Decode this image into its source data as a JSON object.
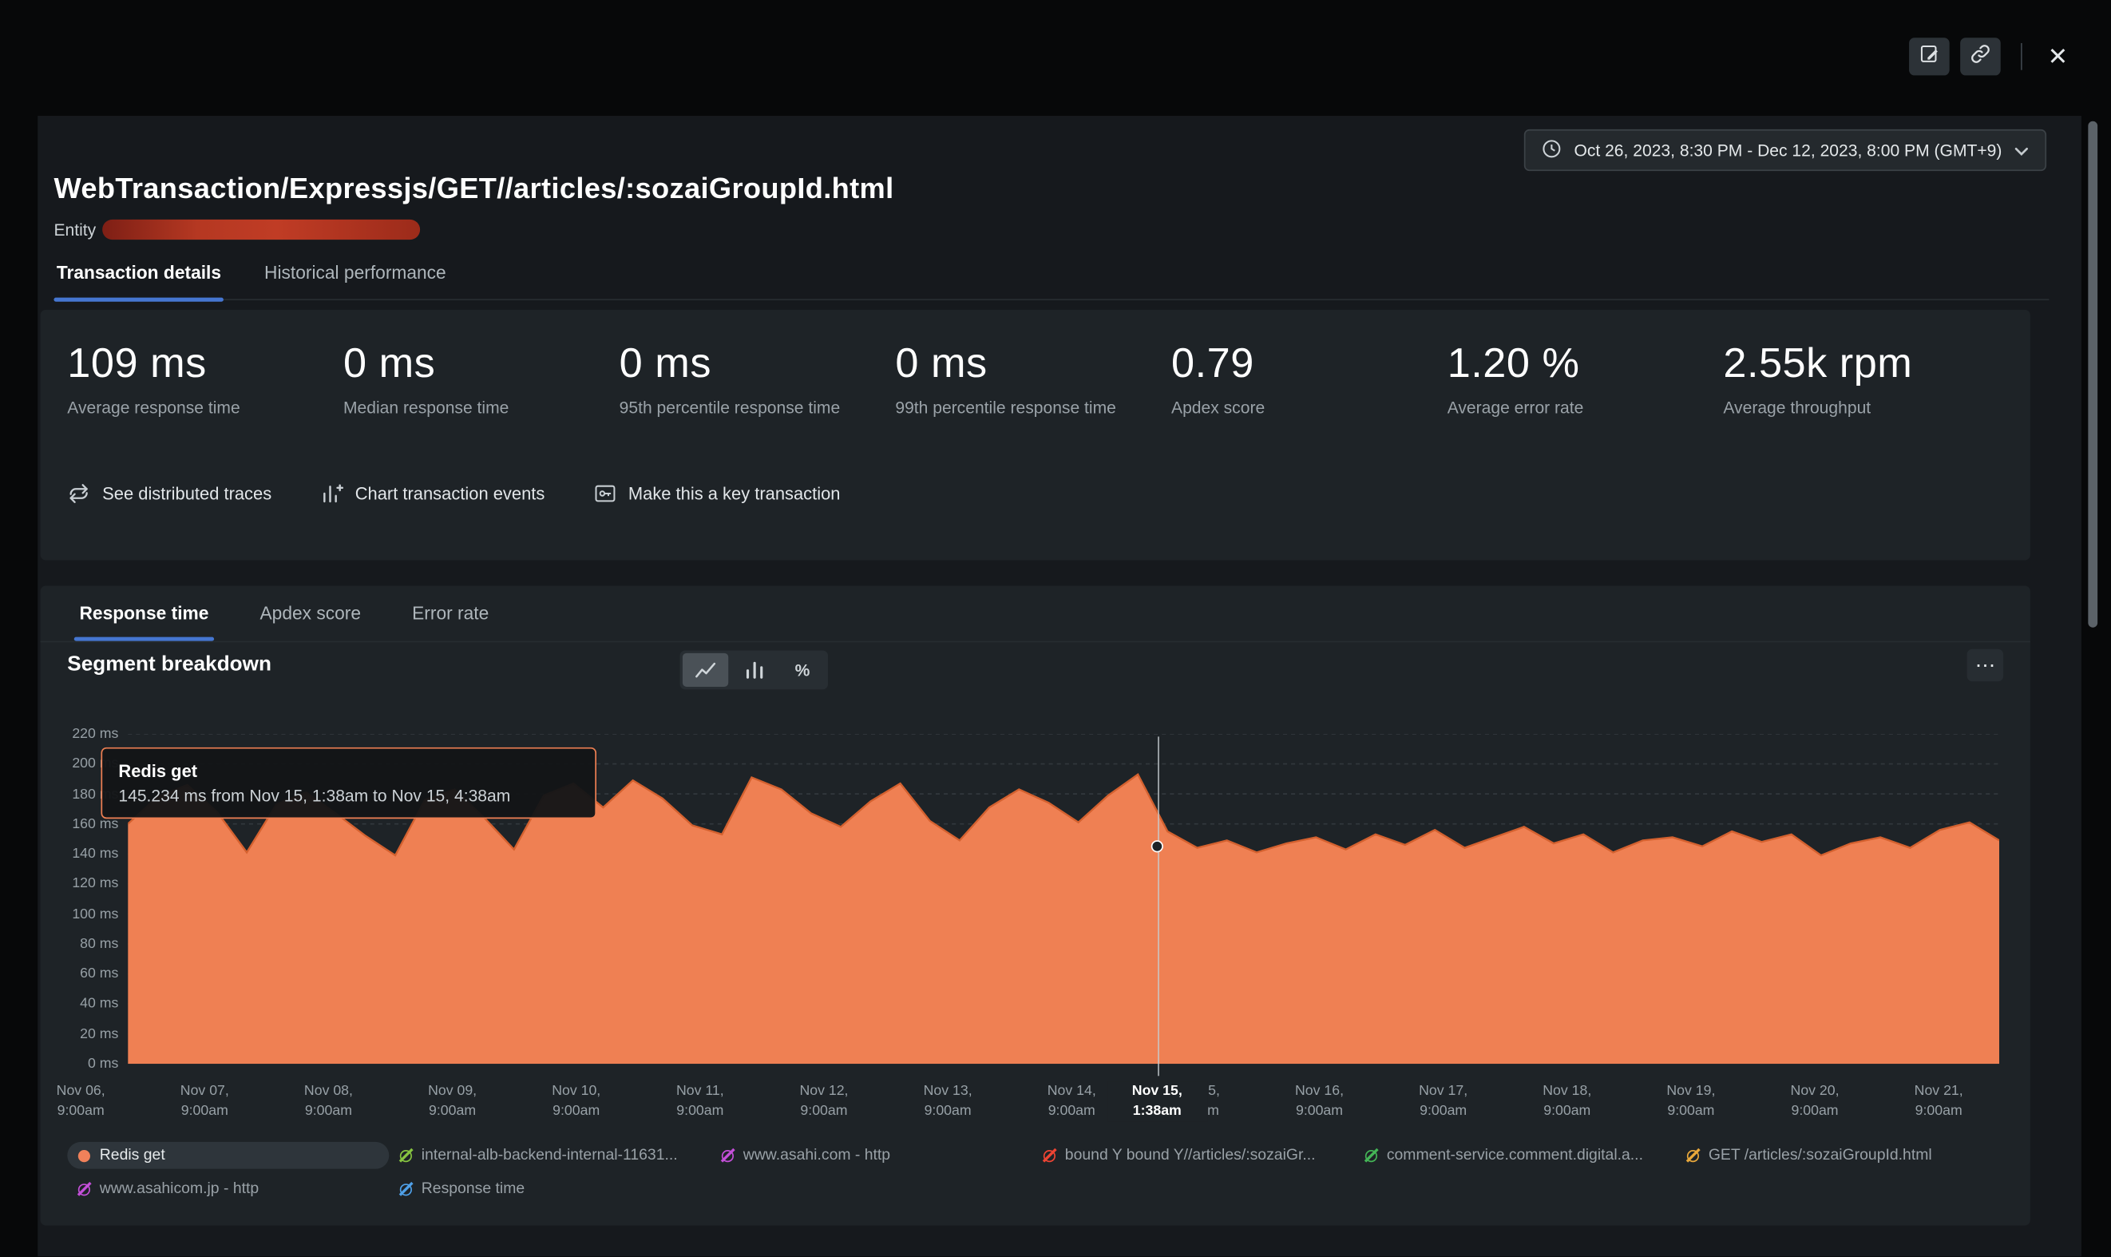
{
  "topbar": {
    "close_glyph": "✕"
  },
  "time_picker": {
    "label": "Oct 26, 2023, 8:30 PM - Dec 12, 2023, 8:00 PM (GMT+9)"
  },
  "page": {
    "title": "WebTransaction/Expressjs/GET//articles/:sozaiGroupId.html",
    "entity_label": "Entity"
  },
  "tabs": [
    {
      "label": "Transaction details",
      "active": true
    },
    {
      "label": "Historical performance",
      "active": false
    }
  ],
  "metrics": [
    {
      "value": "109 ms",
      "label": "Average response time"
    },
    {
      "value": "0 ms",
      "label": "Median response time"
    },
    {
      "value": "0 ms",
      "label": "95th percentile response time"
    },
    {
      "value": "0 ms",
      "label": "99th percentile response time"
    },
    {
      "value": "0.79",
      "label": "Apdex score"
    },
    {
      "value": "1.20 %",
      "label": "Average error rate"
    },
    {
      "value": "2.55k rpm",
      "label": "Average throughput"
    }
  ],
  "quick_actions": [
    {
      "label": "See distributed traces",
      "icon": "distributed-traces-icon"
    },
    {
      "label": "Chart transaction events",
      "icon": "chart-events-icon"
    },
    {
      "label": "Make this a key transaction",
      "icon": "key-transaction-icon"
    }
  ],
  "chart_tabs": [
    {
      "label": "Response time",
      "active": true
    },
    {
      "label": "Apdex score",
      "active": false
    },
    {
      "label": "Error rate",
      "active": false
    }
  ],
  "segment_section": {
    "title": "Segment breakdown",
    "menu_glyph": "⋯"
  },
  "chart_toggles": [
    {
      "icon": "line-chart",
      "selected": true
    },
    {
      "icon": "bar-chart",
      "selected": false
    },
    {
      "icon": "percent",
      "selected": false
    }
  ],
  "legend": [
    {
      "label": "Redis get",
      "color": "#f0815a",
      "state": "active"
    },
    {
      "label": "internal-alb-backend-internal-11631...",
      "color": "#86c440",
      "state": "disabled"
    },
    {
      "label": "www.asahi.com - http",
      "color": "#c44fd9",
      "state": "disabled"
    },
    {
      "label": "bound Y bound Y//articles/:sozaiGr...",
      "color": "#ee4433",
      "state": "disabled"
    },
    {
      "label": "comment-service.comment.digital.a...",
      "color": "#44b556",
      "state": "disabled"
    },
    {
      "label": "GET /articles/:sozaiGroupId.html",
      "color": "#e9a83b",
      "state": "disabled"
    },
    {
      "label": "www.asahicom.jp - http",
      "color": "#c44fd9",
      "state": "disabled"
    },
    {
      "label": "Response time",
      "color": "#4fa0e8",
      "state": "disabled"
    }
  ],
  "chart_data": {
    "type": "area",
    "title": "Segment breakdown",
    "ylabel": "ms",
    "ylim": [
      0,
      220
    ],
    "grid": "dashed-horizontal",
    "legend_position": "bottom",
    "y_ticks": [
      "220 ms",
      "200 ms",
      "180 ms",
      "160 ms",
      "140 ms",
      "120 ms",
      "100 ms",
      "80 ms",
      "60 ms",
      "40 ms",
      "20 ms",
      "0 ms"
    ],
    "x_ticks": [
      {
        "line1": "Nov 06,",
        "line2": "9:00am"
      },
      {
        "line1": "Nov 07,",
        "line2": "9:00am"
      },
      {
        "line1": "Nov 08,",
        "line2": "9:00am"
      },
      {
        "line1": "Nov 09,",
        "line2": "9:00am"
      },
      {
        "line1": "Nov 10,",
        "line2": "9:00am"
      },
      {
        "line1": "Nov 11,",
        "line2": "9:00am"
      },
      {
        "line1": "Nov 12,",
        "line2": "9:00am"
      },
      {
        "line1": "Nov 13,",
        "line2": "9:00am"
      },
      {
        "line1": "Nov 14,",
        "line2": "9:00am"
      },
      {
        "line1": "Nov 15,",
        "line2": "9:00am"
      },
      {
        "line1": "Nov 16,",
        "line2": "9:00am"
      },
      {
        "line1": "Nov 17,",
        "line2": "9:00am"
      },
      {
        "line1": "Nov 18,",
        "line2": "9:00am"
      },
      {
        "line1": "Nov 19,",
        "line2": "9:00am"
      },
      {
        "line1": "Nov 20,",
        "line2": "9:00am"
      },
      {
        "line1": "Nov 21,",
        "line2": "9:00am"
      }
    ],
    "series": [
      {
        "name": "Redis get",
        "unit": "ms",
        "color": "#ef8053",
        "values": [
          160,
          178,
          186,
          168,
          141,
          173,
          181,
          167,
          152,
          139,
          176,
          183,
          164,
          143,
          179,
          187,
          171,
          189,
          177,
          159,
          153,
          191,
          183,
          167,
          158,
          175,
          187,
          162,
          149,
          171,
          183,
          174,
          161,
          179,
          193,
          155,
          144,
          149,
          141,
          147,
          151,
          143,
          153,
          146,
          156,
          144,
          151,
          158,
          147,
          153,
          141,
          149,
          151,
          145,
          155,
          148,
          153,
          139,
          147,
          151,
          144,
          156,
          161,
          149
        ]
      }
    ],
    "crosshair": {
      "fraction": 0.55,
      "value_ms": 145.234,
      "label_line1": "Nov 15,",
      "label_line2": "1:38am"
    },
    "tooltip": {
      "title": "Redis get",
      "detail": "145.234 ms from Nov 15, 1:38am to Nov 15, 4:38am"
    }
  }
}
